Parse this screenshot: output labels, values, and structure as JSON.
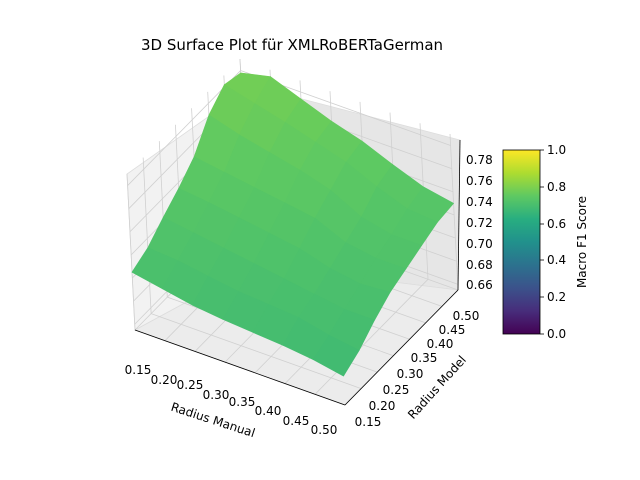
{
  "chart_data": {
    "type": "surface3d",
    "title": "3D Surface Plot für XMLRoBERTaGerman",
    "xlabel": "Radius Manual",
    "ylabel": "Radius Model",
    "zlabel": "",
    "x_ticks": [
      "0.15",
      "0.20",
      "0.25",
      "0.30",
      "0.35",
      "0.40",
      "0.45",
      "0.50"
    ],
    "y_ticks": [
      "0.15",
      "0.20",
      "0.25",
      "0.30",
      "0.35",
      "0.40",
      "0.45",
      "0.50"
    ],
    "z_ticks": [
      "0.66",
      "0.68",
      "0.70",
      "0.72",
      "0.74",
      "0.76",
      "0.78"
    ],
    "xlim": [
      0.15,
      0.5
    ],
    "ylim": [
      0.15,
      0.5
    ],
    "zlim": [
      0.655,
      0.79
    ],
    "grid": true,
    "x": [
      0.15,
      0.2,
      0.25,
      0.3,
      0.35,
      0.4,
      0.45,
      0.5
    ],
    "y": [
      0.15,
      0.2,
      0.25,
      0.3,
      0.35,
      0.4,
      0.45,
      0.5
    ],
    "z": [
      [
        0.705,
        0.712,
        0.724,
        0.735,
        0.748,
        0.77,
        0.782,
        0.778
      ],
      [
        0.7,
        0.71,
        0.72,
        0.732,
        0.744,
        0.762,
        0.775,
        0.784
      ],
      [
        0.695,
        0.706,
        0.716,
        0.728,
        0.74,
        0.756,
        0.768,
        0.774
      ],
      [
        0.692,
        0.702,
        0.712,
        0.724,
        0.736,
        0.75,
        0.76,
        0.764
      ],
      [
        0.69,
        0.7,
        0.708,
        0.72,
        0.732,
        0.742,
        0.752,
        0.756
      ],
      [
        0.688,
        0.698,
        0.704,
        0.712,
        0.72,
        0.728,
        0.74,
        0.745
      ],
      [
        0.685,
        0.692,
        0.7,
        0.708,
        0.716,
        0.722,
        0.73,
        0.735
      ],
      [
        0.68,
        0.688,
        0.7,
        0.71,
        0.716,
        0.722,
        0.728,
        0.73
      ]
    ],
    "colorbar": {
      "label": "Macro F1 Score",
      "colormap": "viridis",
      "range": [
        0.0,
        1.0
      ],
      "ticks": [
        "0.0",
        "0.2",
        "0.4",
        "0.6",
        "0.8",
        "1.0"
      ]
    }
  }
}
